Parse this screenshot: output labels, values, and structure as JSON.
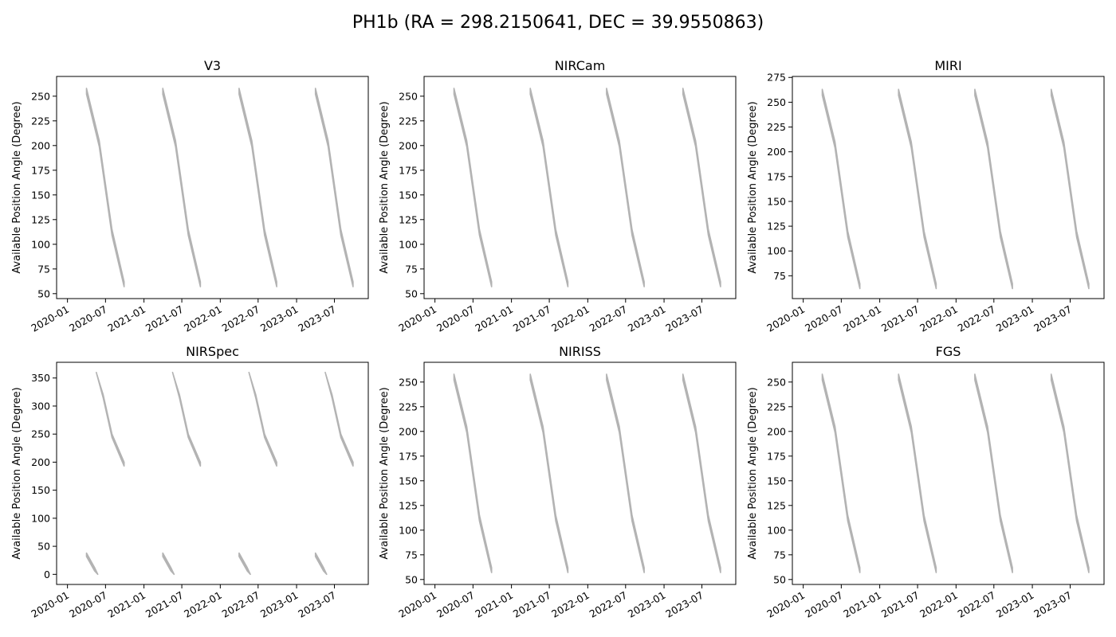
{
  "suptitle": "PH1b (RA = 298.2150641, DEC = 39.9550863)",
  "band_color": "#b3b3b3",
  "chart_data": [
    {
      "type": "area",
      "title": "V3",
      "ylabel": "Available Position Angle (Degree)",
      "xlim": [
        "2019-11-10",
        "2023-12-10"
      ],
      "ylim": [
        45,
        270
      ],
      "yticks": [
        50,
        75,
        100,
        125,
        150,
        175,
        200,
        225,
        250
      ],
      "xticks": [
        "2020-01",
        "2020-07",
        "2021-01",
        "2021-07",
        "2022-01",
        "2022-07",
        "2023-01",
        "2023-07"
      ],
      "grid": false,
      "series": [
        {
          "x": [
            "2020-04-01",
            "2020-06-01",
            "2020-08-01",
            "2020-09-28"
          ],
          "y_upper": [
            258,
            205,
            115,
            62
          ],
          "y_lower": [
            252,
            199,
            109,
            57
          ]
        },
        {
          "x": [
            "2021-04-01",
            "2021-06-01",
            "2021-08-01",
            "2021-09-28"
          ],
          "y_upper": [
            258,
            205,
            115,
            62
          ],
          "y_lower": [
            252,
            199,
            109,
            57
          ]
        },
        {
          "x": [
            "2022-04-01",
            "2022-06-01",
            "2022-08-01",
            "2022-09-28"
          ],
          "y_upper": [
            258,
            205,
            115,
            62
          ],
          "y_lower": [
            252,
            199,
            109,
            57
          ]
        },
        {
          "x": [
            "2023-04-01",
            "2023-06-01",
            "2023-08-01",
            "2023-09-28"
          ],
          "y_upper": [
            258,
            205,
            115,
            62
          ],
          "y_lower": [
            252,
            199,
            109,
            57
          ]
        }
      ]
    },
    {
      "type": "area",
      "title": "NIRCam",
      "ylabel": "Available Position Angle (Degree)",
      "xlim": [
        "2019-11-10",
        "2023-12-10"
      ],
      "ylim": [
        45,
        270
      ],
      "yticks": [
        50,
        75,
        100,
        125,
        150,
        175,
        200,
        225,
        250
      ],
      "xticks": [
        "2020-01",
        "2020-07",
        "2021-01",
        "2021-07",
        "2022-01",
        "2022-07",
        "2023-01",
        "2023-07"
      ],
      "grid": false,
      "series": [
        {
          "x": [
            "2020-04-01",
            "2020-06-01",
            "2020-08-01",
            "2020-09-28"
          ],
          "y_upper": [
            258,
            205,
            115,
            62
          ],
          "y_lower": [
            252,
            199,
            109,
            57
          ]
        },
        {
          "x": [
            "2021-04-01",
            "2021-06-01",
            "2021-08-01",
            "2021-09-28"
          ],
          "y_upper": [
            258,
            205,
            115,
            62
          ],
          "y_lower": [
            252,
            199,
            109,
            57
          ]
        },
        {
          "x": [
            "2022-04-01",
            "2022-06-01",
            "2022-08-01",
            "2022-09-28"
          ],
          "y_upper": [
            258,
            205,
            115,
            62
          ],
          "y_lower": [
            252,
            199,
            109,
            57
          ]
        },
        {
          "x": [
            "2023-04-01",
            "2023-06-01",
            "2023-08-01",
            "2023-09-28"
          ],
          "y_upper": [
            258,
            205,
            115,
            62
          ],
          "y_lower": [
            252,
            199,
            109,
            57
          ]
        }
      ]
    },
    {
      "type": "area",
      "title": "MIRI",
      "ylabel": "Available Position Angle (Degree)",
      "xlim": [
        "2019-11-10",
        "2023-12-10"
      ],
      "ylim": [
        52,
        276
      ],
      "yticks": [
        75,
        100,
        125,
        150,
        175,
        200,
        225,
        250,
        275
      ],
      "xticks": [
        "2020-01",
        "2020-07",
        "2021-01",
        "2021-07",
        "2022-01",
        "2022-07",
        "2023-01",
        "2023-07"
      ],
      "grid": false,
      "series": [
        {
          "x": [
            "2020-04-01",
            "2020-06-01",
            "2020-08-01",
            "2020-09-28"
          ],
          "y_upper": [
            263,
            210,
            120,
            67
          ],
          "y_lower": [
            257,
            204,
            114,
            62
          ]
        },
        {
          "x": [
            "2021-04-01",
            "2021-06-01",
            "2021-08-01",
            "2021-09-28"
          ],
          "y_upper": [
            263,
            210,
            120,
            67
          ],
          "y_lower": [
            257,
            204,
            114,
            62
          ]
        },
        {
          "x": [
            "2022-04-01",
            "2022-06-01",
            "2022-08-01",
            "2022-09-28"
          ],
          "y_upper": [
            263,
            210,
            120,
            67
          ],
          "y_lower": [
            257,
            204,
            114,
            62
          ]
        },
        {
          "x": [
            "2023-04-01",
            "2023-06-01",
            "2023-08-01",
            "2023-09-28"
          ],
          "y_upper": [
            263,
            210,
            120,
            67
          ],
          "y_lower": [
            257,
            204,
            114,
            62
          ]
        }
      ]
    },
    {
      "type": "area",
      "title": "NIRSpec",
      "ylabel": "Available Position Angle (Degree)",
      "xlim": [
        "2019-11-10",
        "2023-12-10"
      ],
      "ylim": [
        -18,
        378
      ],
      "yticks": [
        0,
        50,
        100,
        150,
        200,
        250,
        300,
        350
      ],
      "xticks": [
        "2020-01",
        "2020-07",
        "2021-01",
        "2021-07",
        "2022-01",
        "2022-07",
        "2023-01",
        "2023-07"
      ],
      "grid": false,
      "series": [
        {
          "x": [
            "2020-04-01",
            "2020-05-10",
            "2020-05-25"
          ],
          "y_upper": [
            38,
            12,
            0
          ],
          "y_lower": [
            32,
            6,
            0
          ]
        },
        {
          "x": [
            "2020-05-18",
            "2020-06-20",
            "2020-08-01",
            "2020-09-28"
          ],
          "y_upper": [
            360,
            320,
            250,
            200
          ],
          "y_lower": [
            360,
            314,
            244,
            193
          ]
        },
        {
          "x": [
            "2021-04-01",
            "2021-05-10",
            "2021-05-25"
          ],
          "y_upper": [
            38,
            12,
            0
          ],
          "y_lower": [
            32,
            6,
            0
          ]
        },
        {
          "x": [
            "2021-05-18",
            "2021-06-20",
            "2021-08-01",
            "2021-09-28"
          ],
          "y_upper": [
            360,
            320,
            250,
            200
          ],
          "y_lower": [
            360,
            314,
            244,
            193
          ]
        },
        {
          "x": [
            "2022-04-01",
            "2022-05-10",
            "2022-05-25"
          ],
          "y_upper": [
            38,
            12,
            0
          ],
          "y_lower": [
            32,
            6,
            0
          ]
        },
        {
          "x": [
            "2022-05-18",
            "2022-06-20",
            "2022-08-01",
            "2022-09-28"
          ],
          "y_upper": [
            360,
            320,
            250,
            200
          ],
          "y_lower": [
            360,
            314,
            244,
            193
          ]
        },
        {
          "x": [
            "2023-04-01",
            "2023-05-10",
            "2023-05-25"
          ],
          "y_upper": [
            38,
            12,
            0
          ],
          "y_lower": [
            32,
            6,
            0
          ]
        },
        {
          "x": [
            "2023-05-18",
            "2023-06-20",
            "2023-08-01",
            "2023-09-28"
          ],
          "y_upper": [
            360,
            320,
            250,
            200
          ],
          "y_lower": [
            360,
            314,
            244,
            193
          ]
        }
      ]
    },
    {
      "type": "area",
      "title": "NIRISS",
      "ylabel": "Available Position Angle (Degree)",
      "xlim": [
        "2019-11-10",
        "2023-12-10"
      ],
      "ylim": [
        45,
        270
      ],
      "yticks": [
        50,
        75,
        100,
        125,
        150,
        175,
        200,
        225,
        250
      ],
      "xticks": [
        "2020-01",
        "2020-07",
        "2021-01",
        "2021-07",
        "2022-01",
        "2022-07",
        "2023-01",
        "2023-07"
      ],
      "grid": false,
      "series": [
        {
          "x": [
            "2020-04-01",
            "2020-06-01",
            "2020-08-01",
            "2020-09-28"
          ],
          "y_upper": [
            258,
            205,
            115,
            62
          ],
          "y_lower": [
            252,
            199,
            109,
            57
          ]
        },
        {
          "x": [
            "2021-04-01",
            "2021-06-01",
            "2021-08-01",
            "2021-09-28"
          ],
          "y_upper": [
            258,
            205,
            115,
            62
          ],
          "y_lower": [
            252,
            199,
            109,
            57
          ]
        },
        {
          "x": [
            "2022-04-01",
            "2022-06-01",
            "2022-08-01",
            "2022-09-28"
          ],
          "y_upper": [
            258,
            205,
            115,
            62
          ],
          "y_lower": [
            252,
            199,
            109,
            57
          ]
        },
        {
          "x": [
            "2023-04-01",
            "2023-06-01",
            "2023-08-01",
            "2023-09-28"
          ],
          "y_upper": [
            258,
            205,
            115,
            62
          ],
          "y_lower": [
            252,
            199,
            109,
            57
          ]
        }
      ]
    },
    {
      "type": "area",
      "title": "FGS",
      "ylabel": "Available Position Angle (Degree)",
      "xlim": [
        "2019-11-10",
        "2023-12-10"
      ],
      "ylim": [
        45,
        270
      ],
      "yticks": [
        50,
        75,
        100,
        125,
        150,
        175,
        200,
        225,
        250
      ],
      "xticks": [
        "2020-01",
        "2020-07",
        "2021-01",
        "2021-07",
        "2022-01",
        "2022-07",
        "2023-01",
        "2023-07"
      ],
      "grid": false,
      "series": [
        {
          "x": [
            "2020-04-01",
            "2020-06-01",
            "2020-08-01",
            "2020-09-28"
          ],
          "y_upper": [
            258,
            205,
            115,
            62
          ],
          "y_lower": [
            252,
            199,
            109,
            57
          ]
        },
        {
          "x": [
            "2021-04-01",
            "2021-06-01",
            "2021-08-01",
            "2021-09-28"
          ],
          "y_upper": [
            258,
            205,
            115,
            62
          ],
          "y_lower": [
            252,
            199,
            109,
            57
          ]
        },
        {
          "x": [
            "2022-04-01",
            "2022-06-01",
            "2022-08-01",
            "2022-09-28"
          ],
          "y_upper": [
            258,
            205,
            115,
            62
          ],
          "y_lower": [
            252,
            199,
            109,
            57
          ]
        },
        {
          "x": [
            "2023-04-01",
            "2023-06-01",
            "2023-08-01",
            "2023-09-28"
          ],
          "y_upper": [
            258,
            205,
            115,
            62
          ],
          "y_lower": [
            252,
            199,
            109,
            57
          ]
        }
      ]
    }
  ]
}
